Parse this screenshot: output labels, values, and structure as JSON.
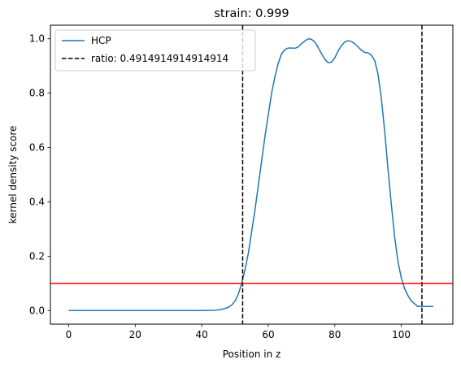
{
  "chart_data": {
    "type": "line",
    "title": "strain: 0.999",
    "xlabel": "Position in z",
    "ylabel": "kernel density score",
    "xlim": [
      -5.5,
      115.5
    ],
    "ylim": [
      -0.05,
      1.05
    ],
    "xticks": [
      0,
      20,
      40,
      60,
      80,
      100
    ],
    "yticks": [
      0.0,
      0.2,
      0.4,
      0.6,
      0.8,
      1.0
    ],
    "grid": false,
    "legend_position": "top-left",
    "series": [
      {
        "name": "HCP",
        "color": "#1f77b4",
        "style": "solid",
        "x": [
          0,
          10,
          20,
          30,
          40,
          44,
          46,
          48,
          49,
          50,
          51,
          52,
          53,
          54,
          55,
          56,
          57,
          58,
          59,
          60,
          61,
          62,
          63,
          64,
          65,
          66,
          67,
          68,
          69,
          70,
          71,
          72,
          73,
          74,
          75,
          76,
          77,
          78,
          79,
          80,
          81,
          82,
          83,
          84,
          85,
          86,
          87,
          88,
          89,
          90,
          91,
          92,
          93,
          94,
          95,
          96,
          97,
          98,
          99,
          100,
          101,
          102,
          103,
          104,
          105,
          106,
          107,
          108,
          109,
          109.6
        ],
        "y": [
          0.0,
          0.0,
          0.0,
          0.0,
          0.0,
          0.001,
          0.004,
          0.012,
          0.02,
          0.035,
          0.06,
          0.1,
          0.15,
          0.21,
          0.29,
          0.37,
          0.46,
          0.55,
          0.64,
          0.72,
          0.8,
          0.86,
          0.91,
          0.945,
          0.96,
          0.966,
          0.966,
          0.965,
          0.97,
          0.982,
          0.992,
          1.0,
          0.998,
          0.988,
          0.968,
          0.945,
          0.925,
          0.912,
          0.914,
          0.93,
          0.955,
          0.975,
          0.988,
          0.993,
          0.99,
          0.982,
          0.97,
          0.958,
          0.95,
          0.948,
          0.94,
          0.92,
          0.87,
          0.78,
          0.66,
          0.52,
          0.39,
          0.27,
          0.18,
          0.12,
          0.08,
          0.055,
          0.035,
          0.025,
          0.015,
          0.015,
          0.015,
          0.015,
          0.015,
          0.015
        ]
      }
    ],
    "vlines": [
      {
        "x": 52.3,
        "color": "#000000",
        "style": "dashed",
        "name": "ratio: 0.4914914914914914"
      },
      {
        "x": 106.2,
        "color": "#000000",
        "style": "dashed",
        "name": ""
      }
    ],
    "hlines": [
      {
        "y": 0.1,
        "color": "#ff0000",
        "style": "solid"
      }
    ],
    "legend": [
      {
        "label": "HCP",
        "color": "#1f77b4",
        "style": "solid"
      },
      {
        "label": "ratio: 0.4914914914914914",
        "color": "#000000",
        "style": "dashed"
      }
    ]
  }
}
